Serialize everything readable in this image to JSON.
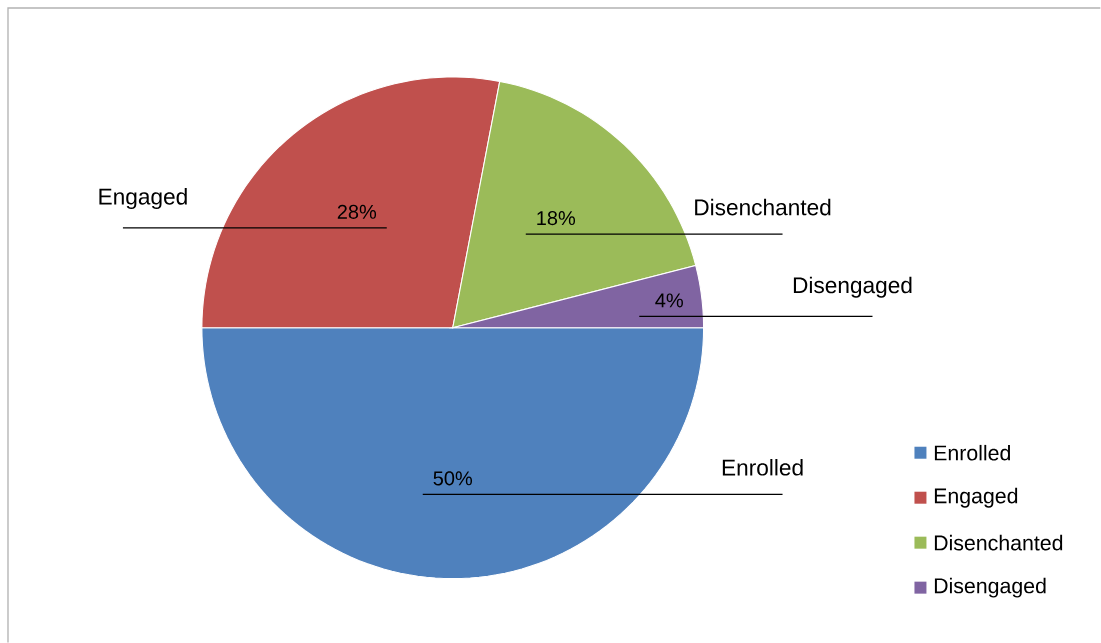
{
  "chart_data": {
    "type": "pie",
    "categories": [
      "Enrolled",
      "Engaged",
      "Disenchanted",
      "Disengaged"
    ],
    "values": [
      50,
      28,
      18,
      4
    ],
    "value_labels": [
      "50%",
      "28%",
      "18%",
      "4%"
    ],
    "colors": [
      "#4f81bd",
      "#c0504d",
      "#9bbb59",
      "#8064a2"
    ],
    "legend": "right"
  }
}
